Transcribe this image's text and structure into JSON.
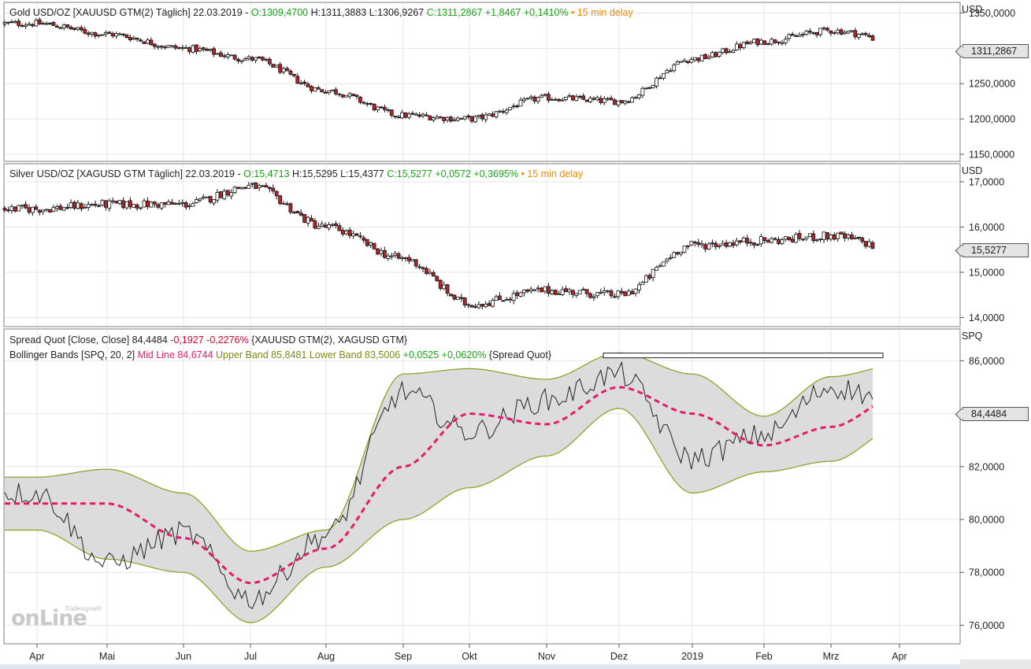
{
  "colors": {
    "up": "#ffffff",
    "down": "#b5262b",
    "green": "#1aa318",
    "red": "#d8002a",
    "orange": "#ee8a00",
    "midline": "#e8196b",
    "band": "#8f9a1c",
    "bandfill": "#dcdcdc",
    "olive": "#7d8a12"
  },
  "panels": {
    "gold": {
      "title": "Gold USD/OZ [XAUUSD GTM(2) Täglich] 22.03.2019 - ",
      "open": "O:1309,4700",
      "hl": " H:1311,3883 L:1306,9267 ",
      "close": "C:1311,2867 +1,8467 +0,1410%",
      "delay": " • 15 min delay",
      "unit": "USD",
      "last": "1311,2867"
    },
    "silver": {
      "title": "Silver USD/OZ [XAGUSD GTM Täglich] 22.03.2019 - ",
      "open": "O:15,4713",
      "hl": " H:15,5295 L:15,4377 ",
      "close": "C:15,5277 +0,0572 +0,3695%",
      "delay": " • 15 min delay",
      "unit": "USD",
      "last": "15,5277"
    },
    "spread": {
      "line1_a": "Spread Quot [Close, Close] ",
      "line1_b": "84,4484",
      "line1_c": " -0,1927 -0,2276%",
      "line1_d": " {XAUUSD GTM(2), XAGUSD GTM}",
      "line2_a": "Bollinger Bands [SPQ, 20, 2] ",
      "line2_b": "Mid Line 84,6744",
      "line2_c": " Upper Band 85,8481 Lower Band 83,5006",
      "line2_d": " +0,0525 +0,0620%",
      "line2_e": " {Spread Quot}",
      "unit": "SPQ",
      "last": "84,4484"
    }
  },
  "logo": {
    "text": "onLine",
    "small": "Tradesignal®"
  },
  "chart_data": [
    {
      "type": "candlestick",
      "title": "Gold USD/OZ [XAUUSD GTM(2) Täglich]",
      "ylabel": "USD",
      "ylim": [
        1140,
        1365
      ],
      "yticks": [
        "1150,0000",
        "1200,0000",
        "1250,0000",
        "1300,0000",
        "1350,0000"
      ],
      "ytick_values": [
        1150,
        1200,
        1250,
        1300,
        1350
      ],
      "x": [
        "Apr",
        "Mai",
        "Jun",
        "Jul",
        "Aug",
        "Sep",
        "Okt",
        "Nov",
        "Dez",
        "2019",
        "Feb",
        "Mrz",
        "Apr"
      ],
      "approx_close_by_month": [
        1335,
        1320,
        1300,
        1285,
        1240,
        1205,
        1200,
        1230,
        1225,
        1285,
        1310,
        1325,
        1311
      ],
      "last": 1311.2867
    },
    {
      "type": "candlestick",
      "title": "Silver USD/OZ [XAGUSD GTM Täglich]",
      "ylabel": "USD",
      "ylim": [
        13.8,
        17.4
      ],
      "yticks": [
        "14,0000",
        "15,0000",
        "16,0000",
        "17,0000"
      ],
      "ytick_values": [
        14,
        15,
        16,
        17
      ],
      "x": [
        "Apr",
        "Mai",
        "Jun",
        "Jul",
        "Aug",
        "Sep",
        "Okt",
        "Nov",
        "Dez",
        "2019",
        "Feb",
        "Mrz",
        "Apr"
      ],
      "approx_close_by_month": [
        16.4,
        16.5,
        16.5,
        16.9,
        16.0,
        15.3,
        14.3,
        14.6,
        14.5,
        15.6,
        15.7,
        15.8,
        15.5
      ],
      "last": 15.5277
    },
    {
      "type": "line",
      "title": "Spread Quot [Close, Close] with Bollinger Bands [SPQ, 20, 2]",
      "ylabel": "SPQ",
      "ylim": [
        75.3,
        87.2
      ],
      "yticks": [
        "76,0000",
        "78,0000",
        "80,0000",
        "82,0000",
        "84,0000",
        "86,0000"
      ],
      "ytick_values": [
        76,
        78,
        80,
        82,
        84,
        86
      ],
      "x": [
        "Apr",
        "Mai",
        "Jun",
        "Jul",
        "Aug",
        "Sep",
        "Okt",
        "Nov",
        "Dez",
        "2019",
        "Feb",
        "Mrz",
        "Apr"
      ],
      "series": [
        {
          "name": "Spread Quot",
          "values": [
            81.0,
            78.3,
            79.5,
            77.0,
            79.4,
            84.8,
            83.3,
            84.5,
            85.5,
            82.3,
            83.2,
            85.0,
            84.4484
          ]
        },
        {
          "name": "Mid Line",
          "values": [
            80.6,
            80.6,
            79.3,
            77.6,
            78.9,
            82.0,
            84.0,
            83.6,
            85.0,
            84.0,
            82.8,
            83.5,
            84.6744
          ]
        },
        {
          "name": "Upper Band",
          "values": [
            81.6,
            81.9,
            81.0,
            78.8,
            79.6,
            85.5,
            85.7,
            85.3,
            86.3,
            85.5,
            83.9,
            85.4,
            85.8481
          ]
        },
        {
          "name": "Lower Band",
          "values": [
            79.6,
            78.5,
            78.0,
            76.1,
            78.2,
            80.0,
            81.2,
            82.4,
            84.2,
            81.0,
            81.8,
            82.2,
            83.5006
          ]
        }
      ],
      "last": 84.4484
    }
  ]
}
